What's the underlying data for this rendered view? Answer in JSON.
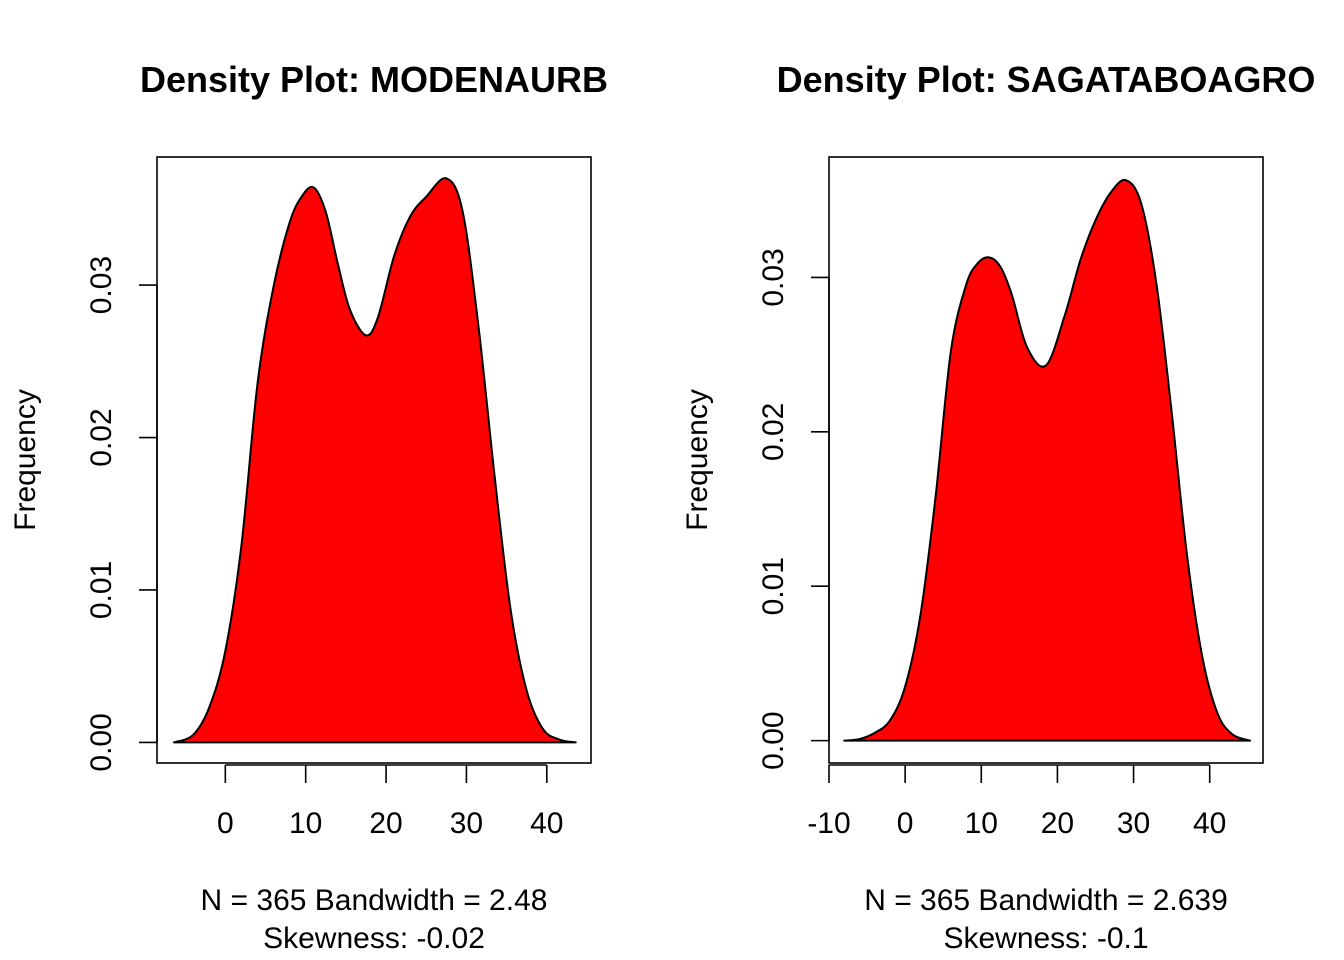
{
  "chart_data": [
    {
      "type": "area",
      "title": "Density Plot: MODENAURB",
      "xlabel": "",
      "ylabel": "Frequency",
      "x_ticks": [
        "0",
        "10",
        "20",
        "30",
        "40"
      ],
      "y_ticks": [
        "0.00",
        "0.01",
        "0.02",
        "0.03"
      ],
      "xlim": [
        -8.5,
        45.5
      ],
      "ylim": [
        -0.00135,
        0.0384
      ],
      "grid": false,
      "legend": "none",
      "fill_color": "#ff0000",
      "stats_line_1": "N = 365   Bandwidth = 2.48",
      "stats_line_2": "Skewness: -0.02",
      "x": [
        -6.4,
        -4,
        -2,
        0,
        2,
        4,
        6,
        8,
        9.5,
        11,
        12.5,
        14,
        15.5,
        17.5,
        19,
        21,
        23,
        25,
        27.5,
        29.5,
        31.5,
        33.5,
        35.5,
        37.5,
        39.5,
        41.5,
        43.6
      ],
      "y": [
        0.0,
        0.0005,
        0.0023,
        0.006,
        0.0129,
        0.0235,
        0.0299,
        0.0341,
        0.0358,
        0.0364,
        0.0348,
        0.0314,
        0.0284,
        0.0267,
        0.0279,
        0.0319,
        0.0345,
        0.0358,
        0.037,
        0.0349,
        0.0273,
        0.0175,
        0.0087,
        0.0034,
        0.0009,
        0.0002,
        0.0
      ]
    },
    {
      "type": "area",
      "title": "Density Plot: SAGATABOAGRO",
      "xlabel": "",
      "ylabel": "Frequency",
      "x_ticks": [
        "-10",
        "0",
        "10",
        "20",
        "30",
        "40"
      ],
      "y_ticks": [
        "0.00",
        "0.01",
        "0.02",
        "0.03"
      ],
      "xlim": [
        -10,
        47
      ],
      "ylim": [
        -0.00145,
        0.0378
      ],
      "grid": false,
      "legend": "none",
      "fill_color": "#ff0000",
      "stats_line_1": "N = 365   Bandwidth = 2.639",
      "stats_line_2": "Skewness: -0.1",
      "x": [
        -8,
        -6,
        -4,
        -2,
        0,
        2,
        4,
        6,
        8,
        9.5,
        11,
        12.5,
        14,
        16,
        18.5,
        21,
        23,
        25,
        27,
        29,
        31,
        33,
        35,
        37,
        39,
        41,
        43,
        45.3
      ],
      "y": [
        0.0,
        0.0001,
        0.0005,
        0.0013,
        0.0035,
        0.0081,
        0.0158,
        0.0252,
        0.0295,
        0.0309,
        0.0313,
        0.0307,
        0.0289,
        0.0255,
        0.0243,
        0.0276,
        0.0311,
        0.0337,
        0.0355,
        0.0363,
        0.0348,
        0.0296,
        0.0213,
        0.0121,
        0.0055,
        0.0018,
        0.0004,
        0.0
      ]
    }
  ]
}
